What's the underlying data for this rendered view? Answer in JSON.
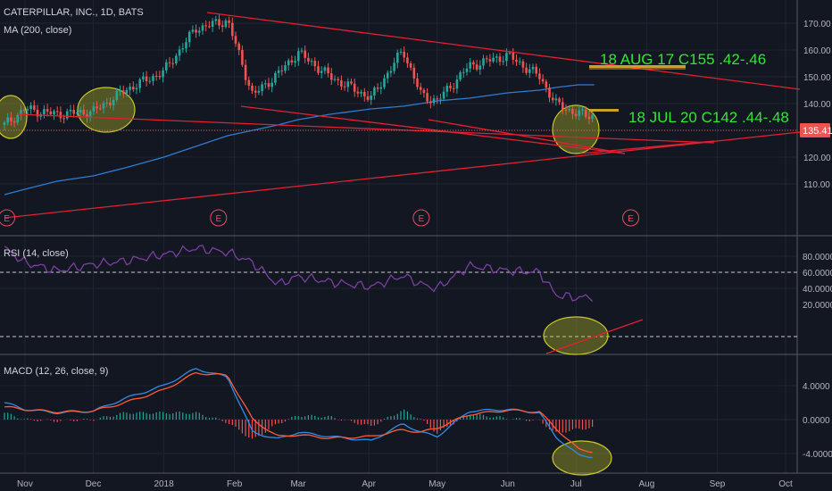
{
  "header": {
    "symbol_title": "CATERPILLAR, INC., 1D, BATS",
    "ma_label": "MA (200, close)"
  },
  "price_axis": {
    "ticks": [
      "170.00",
      "160.00",
      "150.00",
      "140.00",
      "130.00",
      "120.00",
      "110.00"
    ],
    "last_price": "135.41"
  },
  "rsi_axis": {
    "ticks": [
      "80.0000",
      "60.0000",
      "40.0000",
      "20.0000"
    ]
  },
  "macd_axis": {
    "ticks": [
      "4.0000",
      "0.0000",
      "-4.0000"
    ]
  },
  "time_axis": {
    "ticks": [
      "Nov",
      "Dec",
      "2018",
      "Feb",
      "Mar",
      "Apr",
      "May",
      "Jun",
      "Jul",
      "Aug",
      "Sep",
      "Oct"
    ]
  },
  "earnings_marker": "E",
  "annotations": {
    "aug_option": "18 AUG 17 C155 .42-.46",
    "jul_option": "18 JUL 20 C142 .44-.48"
  },
  "colors": {
    "background": "#131722",
    "up_candle": "#26a69a",
    "down_candle": "#ef5350",
    "ma": "#2e7dd1",
    "trendline": "#e3202f",
    "rsi": "#7b3fa2",
    "macd": "#2e8de8",
    "signal": "#ff5a36",
    "annotation": "#33e633",
    "highlight": "#c8c829"
  },
  "chart_data": [
    {
      "type": "candlestick",
      "title": "CATERPILLAR, INC., 1D, BATS",
      "x": [
        "2017-10-23",
        "2017-11-01",
        "2017-11-15",
        "2017-12-01",
        "2017-12-15",
        "2018-01-01",
        "2018-01-15",
        "2018-01-29",
        "2018-02-09",
        "2018-02-20",
        "2018-03-01",
        "2018-03-15",
        "2018-04-02",
        "2018-04-16",
        "2018-04-24",
        "2018-05-01",
        "2018-05-15",
        "2018-06-01",
        "2018-06-15",
        "2018-06-22",
        "2018-07-02",
        "2018-07-09"
      ],
      "close": [
        132,
        138,
        136,
        137,
        145,
        152,
        168,
        171,
        143,
        151,
        159,
        150,
        142,
        160,
        143,
        141,
        154,
        158,
        150,
        140,
        136,
        135.41
      ],
      "series": [
        {
          "name": "MA (200, close)",
          "values": [
            106,
            108,
            111,
            113,
            116,
            120,
            124,
            128,
            130,
            132,
            134,
            136,
            138,
            139,
            140,
            141,
            142,
            144,
            145,
            146,
            147,
            147
          ]
        }
      ],
      "ylim": [
        102,
        175
      ],
      "last_value": 135.41
    },
    {
      "type": "line",
      "title": "RSI (14, close)",
      "x": [
        "2017-10-23",
        "2017-11-01",
        "2017-11-15",
        "2017-12-01",
        "2017-12-15",
        "2018-01-01",
        "2018-01-15",
        "2018-01-29",
        "2018-02-09",
        "2018-02-20",
        "2018-03-01",
        "2018-03-15",
        "2018-04-02",
        "2018-04-16",
        "2018-04-24",
        "2018-05-01",
        "2018-05-15",
        "2018-06-01",
        "2018-06-15",
        "2018-06-22",
        "2018-07-02",
        "2018-07-09"
      ],
      "series": [
        {
          "name": "RSI (14, close)",
          "values": [
            90,
            72,
            62,
            70,
            74,
            82,
            90,
            85,
            72,
            45,
            55,
            48,
            42,
            56,
            45,
            40,
            68,
            62,
            60,
            32,
            28,
            30
          ]
        }
      ],
      "ylim": [
        20,
        92
      ],
      "levels": [
        70,
        30
      ]
    },
    {
      "type": "line",
      "title": "MACD (12, 26, close, 9)",
      "x": [
        "2017-10-23",
        "2017-11-01",
        "2017-11-15",
        "2017-12-01",
        "2017-12-15",
        "2018-01-01",
        "2018-01-15",
        "2018-01-29",
        "2018-02-09",
        "2018-02-20",
        "2018-03-01",
        "2018-03-15",
        "2018-04-02",
        "2018-04-16",
        "2018-04-24",
        "2018-05-01",
        "2018-05-15",
        "2018-06-01",
        "2018-06-15",
        "2018-06-22",
        "2018-07-02",
        "2018-07-09"
      ],
      "series": [
        {
          "name": "MACD",
          "values": [
            2.0,
            1.2,
            0.8,
            1.0,
            2.5,
            4.0,
            6.0,
            5.0,
            -1.5,
            -2.3,
            -1.5,
            -2.0,
            -2.5,
            -0.5,
            -1.5,
            -2.0,
            1.0,
            1.2,
            0.8,
            -2.0,
            -4.2,
            -4.4
          ]
        },
        {
          "name": "Signal",
          "values": [
            1.5,
            1.2,
            0.9,
            1.0,
            2.0,
            3.5,
            5.5,
            5.2,
            0.0,
            -2.0,
            -1.8,
            -2.2,
            -2.0,
            -1.2,
            -1.5,
            -1.0,
            0.6,
            1.1,
            0.9,
            -1.0,
            -3.5,
            -3.8
          ]
        }
      ],
      "ylim": [
        -5.2,
        6.8
      ]
    }
  ]
}
